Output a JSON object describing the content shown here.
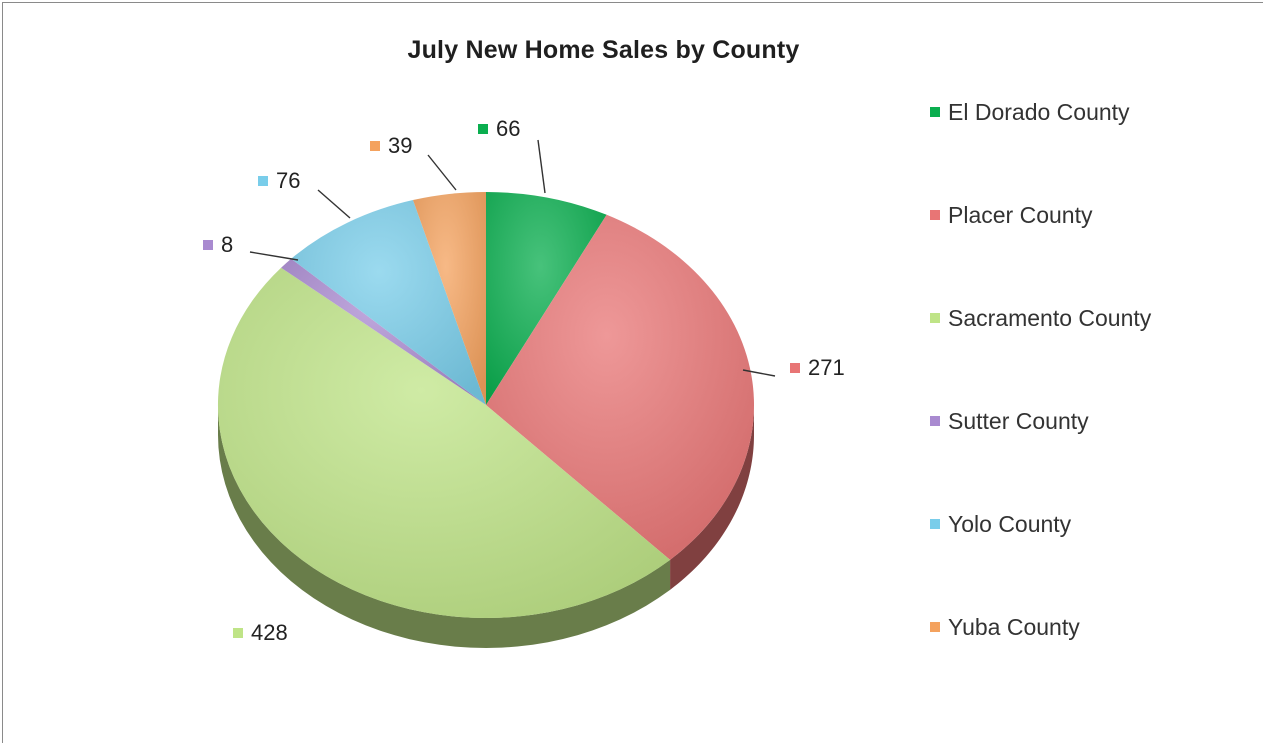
{
  "chart_data": {
    "type": "pie",
    "title": "July New Home Sales by County",
    "legend_position": "right",
    "slices": [
      {
        "label": "El Dorado County",
        "value": 66,
        "color": "#0aae4f"
      },
      {
        "label": "Placer County",
        "value": 271,
        "color": "#e87575"
      },
      {
        "label": "Sacramento County",
        "value": 428,
        "color": "#bfe487"
      },
      {
        "label": "Sutter County",
        "value": 8,
        "color": "#a98ad0"
      },
      {
        "label": "Yolo County",
        "value": 76,
        "color": "#79cdea"
      },
      {
        "label": "Yuba County",
        "value": 39,
        "color": "#f4a25e"
      }
    ]
  }
}
